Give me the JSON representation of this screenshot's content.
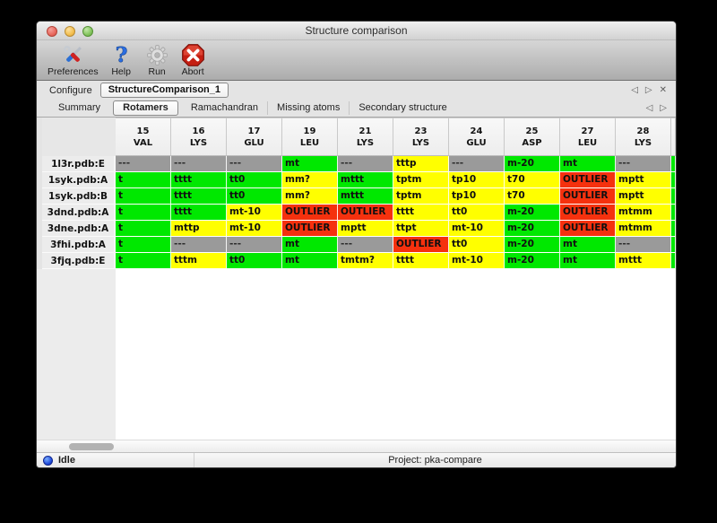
{
  "window": {
    "title": "Structure comparison"
  },
  "toolbar": {
    "buttons": [
      {
        "id": "preferences",
        "label": "Preferences"
      },
      {
        "id": "help",
        "label": "Help"
      },
      {
        "id": "run",
        "label": "Run"
      },
      {
        "id": "abort",
        "label": "Abort"
      }
    ]
  },
  "configure_bar": {
    "label": "Configure",
    "active_config": "StructureComparison_1",
    "nav": {
      "prev": "◁",
      "next": "▷",
      "close": "✕"
    }
  },
  "tab_bar": {
    "tabs": [
      {
        "label": "Summary"
      },
      {
        "label": "Rotamers"
      },
      {
        "label": "Ramachandran"
      },
      {
        "label": "Missing atoms"
      },
      {
        "label": "Secondary structure"
      }
    ],
    "active": "Rotamers",
    "nav": {
      "prev": "◁",
      "next": "▷"
    }
  },
  "colors": {
    "green": "#00e800",
    "yellow": "#ffff00",
    "red": "#f5310e",
    "gray": "#9a9a9a"
  },
  "table": {
    "columns": [
      {
        "num": "15",
        "res": "VAL"
      },
      {
        "num": "16",
        "res": "LYS"
      },
      {
        "num": "17",
        "res": "GLU"
      },
      {
        "num": "19",
        "res": "LEU"
      },
      {
        "num": "21",
        "res": "LYS"
      },
      {
        "num": "23",
        "res": "LYS"
      },
      {
        "num": "24",
        "res": "GLU"
      },
      {
        "num": "25",
        "res": "ASP"
      },
      {
        "num": "27",
        "res": "LEU"
      },
      {
        "num": "28",
        "res": "LYS"
      },
      {
        "num": "",
        "res": "",
        "partial": true
      }
    ],
    "rows": [
      {
        "label": "1l3r.pdb:E",
        "cells": [
          [
            "---",
            "gray"
          ],
          [
            "---",
            "gray"
          ],
          [
            "---",
            "gray"
          ],
          [
            "mt",
            "green"
          ],
          [
            "---",
            "gray"
          ],
          [
            "tttp",
            "yellow"
          ],
          [
            "---",
            "gray"
          ],
          [
            "m-20",
            "green"
          ],
          [
            "mt",
            "green"
          ],
          [
            "---",
            "gray"
          ],
          [
            "",
            "green"
          ]
        ]
      },
      {
        "label": "1syk.pdb:A",
        "cells": [
          [
            "t",
            "green"
          ],
          [
            "tttt",
            "green"
          ],
          [
            "tt0",
            "green"
          ],
          [
            "mm?",
            "yellow"
          ],
          [
            "mttt",
            "green"
          ],
          [
            "tptm",
            "yellow"
          ],
          [
            "tp10",
            "yellow"
          ],
          [
            "t70",
            "yellow"
          ],
          [
            "OUTLIER",
            "red"
          ],
          [
            "mptt",
            "yellow"
          ],
          [
            "",
            "green"
          ]
        ]
      },
      {
        "label": "1syk.pdb:B",
        "cells": [
          [
            "t",
            "green"
          ],
          [
            "tttt",
            "green"
          ],
          [
            "tt0",
            "green"
          ],
          [
            "mm?",
            "yellow"
          ],
          [
            "mttt",
            "green"
          ],
          [
            "tptm",
            "yellow"
          ],
          [
            "tp10",
            "yellow"
          ],
          [
            "t70",
            "yellow"
          ],
          [
            "OUTLIER",
            "red"
          ],
          [
            "mptt",
            "yellow"
          ],
          [
            "",
            "green"
          ]
        ]
      },
      {
        "label": "3dnd.pdb:A",
        "cells": [
          [
            "t",
            "green"
          ],
          [
            "tttt",
            "green"
          ],
          [
            "mt-10",
            "yellow"
          ],
          [
            "OUTLIER",
            "red"
          ],
          [
            "OUTLIER",
            "red"
          ],
          [
            "tttt",
            "yellow"
          ],
          [
            "tt0",
            "yellow"
          ],
          [
            "m-20",
            "green"
          ],
          [
            "OUTLIER",
            "red"
          ],
          [
            "mtmm",
            "yellow"
          ],
          [
            "",
            "green"
          ]
        ]
      },
      {
        "label": "3dne.pdb:A",
        "cells": [
          [
            "t",
            "green"
          ],
          [
            "mttp",
            "yellow"
          ],
          [
            "mt-10",
            "yellow"
          ],
          [
            "OUTLIER",
            "red"
          ],
          [
            "mptt",
            "yellow"
          ],
          [
            "ttpt",
            "yellow"
          ],
          [
            "mt-10",
            "yellow"
          ],
          [
            "m-20",
            "green"
          ],
          [
            "OUTLIER",
            "red"
          ],
          [
            "mtmm",
            "yellow"
          ],
          [
            "",
            "green"
          ]
        ]
      },
      {
        "label": "3fhi.pdb:A",
        "cells": [
          [
            "t",
            "green"
          ],
          [
            "---",
            "gray"
          ],
          [
            "---",
            "gray"
          ],
          [
            "mt",
            "green"
          ],
          [
            "---",
            "gray"
          ],
          [
            "OUTLIER",
            "red"
          ],
          [
            "tt0",
            "yellow"
          ],
          [
            "m-20",
            "green"
          ],
          [
            "mt",
            "green"
          ],
          [
            "---",
            "gray"
          ],
          [
            "",
            "green"
          ]
        ]
      },
      {
        "label": "3fjq.pdb:E",
        "cells": [
          [
            "t",
            "green"
          ],
          [
            "tttm",
            "yellow"
          ],
          [
            "tt0",
            "green"
          ],
          [
            "mt",
            "green"
          ],
          [
            "tmtm?",
            "yellow"
          ],
          [
            "tttt",
            "yellow"
          ],
          [
            "mt-10",
            "yellow"
          ],
          [
            "m-20",
            "green"
          ],
          [
            "mt",
            "green"
          ],
          [
            "mttt",
            "yellow"
          ],
          [
            "",
            "green"
          ]
        ]
      }
    ]
  },
  "status_bar": {
    "state": "Idle",
    "project": "Project: pka-compare"
  }
}
